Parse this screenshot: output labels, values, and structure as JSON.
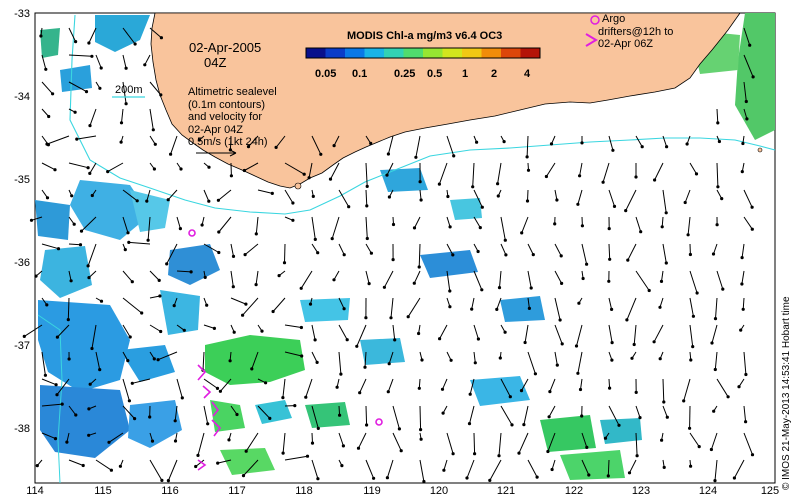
{
  "title": {
    "date": "02-Apr-2005",
    "time": "04Z"
  },
  "colorbar": {
    "title": "MODIS Chl-a mg/m3 v6.4 OC3",
    "ticks": [
      "0.05",
      "0.1",
      "0.25",
      "0.5",
      "1",
      "2",
      "4"
    ],
    "colors": [
      "#08108c",
      "#0a3cc8",
      "#0a78e6",
      "#1ab4e6",
      "#32d2b4",
      "#50dc6e",
      "#96e632",
      "#d2e61e",
      "#f0c814",
      "#f08c0a",
      "#dc460a",
      "#b41408"
    ]
  },
  "contour_label": "200m",
  "sealevel_note": {
    "lines": [
      "Altimetric sealevel",
      "(0.1m contours)",
      "and velocity for",
      "02-Apr 04Z",
      "0.5m/s (1kt 24h)"
    ]
  },
  "argo_legend": {
    "lines": [
      "Argo",
      "drifters@12h to",
      "02-Apr 06Z"
    ]
  },
  "credit": "© IMOS 21-May-2013 14:53:41 Hobart time",
  "axes": {
    "y_labels": [
      "-33",
      "-34",
      "-35",
      "-36",
      "-37",
      "-38"
    ],
    "x_labels": [
      "114",
      "115",
      "116",
      "117",
      "118",
      "119",
      "120",
      "121",
      "122",
      "123",
      "124",
      "125"
    ]
  },
  "colors": {
    "land": "#f9c49c",
    "shelf_contour": "#3ad6e0",
    "argo": "#e01ee0",
    "chl_low": "#2a96e6",
    "chl_mid": "#48c8a0",
    "chl_high": "#3cd250"
  }
}
